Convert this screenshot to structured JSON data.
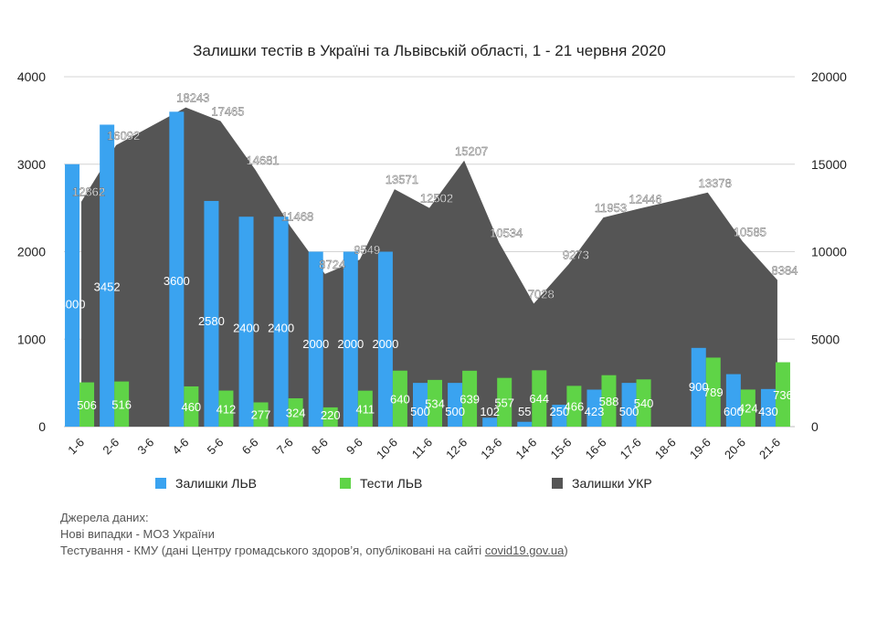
{
  "chart_data": {
    "type": "bar",
    "title": "Залишки тестів в Україні та Львівській області, 1 - 21 червня 2020",
    "categories": [
      "1-6",
      "2-6",
      "3-6",
      "4-6",
      "5-6",
      "6-6",
      "7-6",
      "8-6",
      "9-6",
      "10-6",
      "11-6",
      "12-6",
      "13-6",
      "14-6",
      "15-6",
      "16-6",
      "17-6",
      "18-6",
      "19-6",
      "20-6",
      "21-6"
    ],
    "y_left": {
      "lim": [
        0,
        4000
      ],
      "ticks": [
        "0",
        "1000",
        "2000",
        "3000",
        "4000"
      ]
    },
    "y_right": {
      "lim": [
        0,
        20000
      ],
      "ticks": [
        "0",
        "5000",
        "10000",
        "15000",
        "20000"
      ]
    },
    "grid": true,
    "legend_position": "bottom",
    "series": [
      {
        "name": "Залишки ЛЬВ",
        "type": "bar",
        "axis": "left",
        "color": "#3aa3f0",
        "values": [
          3000,
          3452,
          null,
          3600,
          2580,
          2400,
          2400,
          2000,
          2000,
          2000,
          500,
          500,
          102,
          55,
          250,
          423,
          500,
          null,
          900,
          600,
          430
        ],
        "labels": [
          "3000",
          "3452",
          "",
          "3600",
          "2580",
          "2400",
          "2400",
          "2000",
          "2000",
          "2000",
          "500",
          "500",
          "102",
          "55",
          "250",
          "423",
          "500",
          "",
          "900",
          "600",
          "430"
        ]
      },
      {
        "name": "Тести ЛЬВ",
        "type": "bar",
        "axis": "left",
        "color": "#5fd447",
        "values": [
          506,
          516,
          null,
          460,
          412,
          277,
          324,
          220,
          411,
          640,
          534,
          639,
          557,
          644,
          466,
          588,
          540,
          null,
          789,
          424,
          736
        ],
        "labels": [
          "506",
          "516",
          "",
          "460",
          "412",
          "277",
          "324",
          "220",
          "411",
          "640",
          "534",
          "639",
          "557",
          "644",
          "466",
          "588",
          "540",
          "",
          "789",
          "424",
          "736"
        ]
      },
      {
        "name": "Залишки УКР",
        "type": "area",
        "axis": "right",
        "color": "#555555",
        "values": [
          12862,
          16092,
          null,
          18243,
          17465,
          14681,
          11468,
          8724,
          9549,
          13571,
          12502,
          15207,
          10534,
          7028,
          9273,
          11953,
          12446,
          null,
          13378,
          10585,
          8384
        ],
        "labels": [
          "12862",
          "16092",
          "",
          "18243",
          "17465",
          "14681",
          "11468",
          "8724",
          "9549",
          "13571",
          "12502",
          "15207",
          "10534",
          "7028",
          "9273",
          "11953",
          "12446",
          "",
          "13378",
          "10585",
          "8384"
        ]
      }
    ]
  },
  "sources": {
    "heading": "Джерела даних:",
    "line1": "Нові випадки - МОЗ України",
    "line2_prefix": "Тестування - КМУ (дані Центру громадського здоров’я, опубліковані на сайті ",
    "line2_link": "covid19.gov.ua",
    "line2_suffix": ")"
  }
}
